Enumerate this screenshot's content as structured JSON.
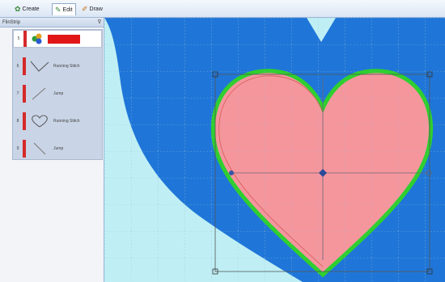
{
  "toolbar": {
    "tabs": [
      {
        "label": "Create",
        "icon": "create-icon",
        "active": false
      },
      {
        "label": "Edit",
        "icon": "edit-icon",
        "active": true
      },
      {
        "label": "Draw",
        "icon": "draw-icon",
        "active": false
      }
    ]
  },
  "panel": {
    "title": "FlinStrip",
    "pin": "ᐁ",
    "rows": [
      {
        "num": "5",
        "label": ""
      },
      {
        "num": "6",
        "label": "Running Stitch"
      },
      {
        "num": "7",
        "label": "Jump"
      },
      {
        "num": "8",
        "label": "Running Stitch"
      },
      {
        "num": "9",
        "label": "Jump"
      }
    ]
  },
  "colors": {
    "canvas_bg": "#bfeff5",
    "shape_blue": "#1f76d8",
    "heart_fill": "#f5969d",
    "heart_outline": "#2fcf2f",
    "stitch_red": "#d42a2a"
  }
}
